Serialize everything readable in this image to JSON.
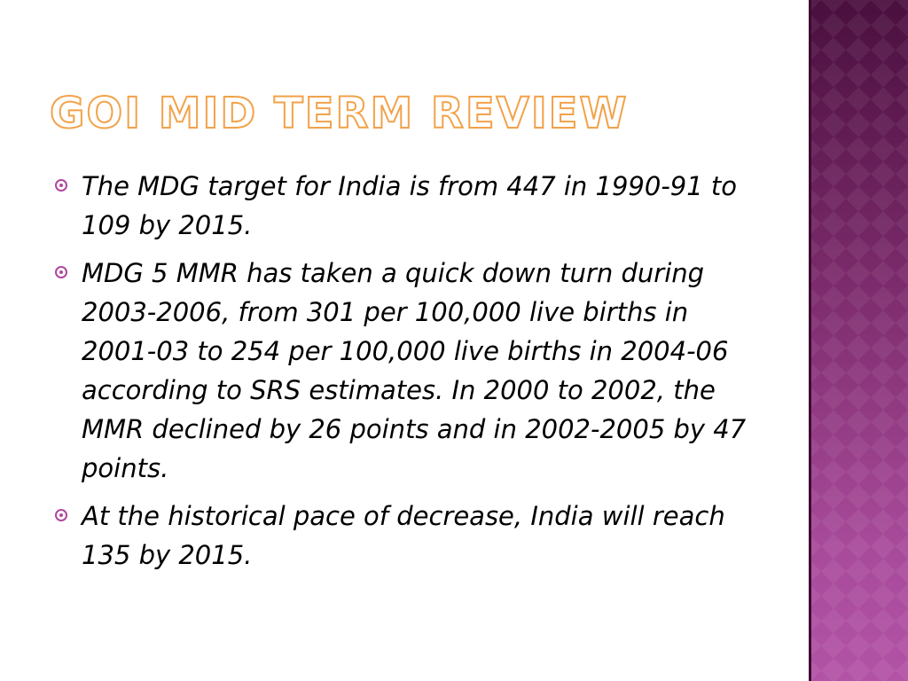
{
  "slide": {
    "title": "GoI Mid Term Review",
    "bullets": [
      "The MDG target for India is from 447 in 1990-91 to 109 by 2015.",
      "MDG 5 MMR has taken a quick down turn during 2003-2006, from 301 per 100,000 live births in 2001-03 to 254 per 100,000 live births in 2004-06 according to SRS estimates. In 2000 to 2002, the MMR declined by 26 points and in 2002-2005 by 47 points.",
      "At the historical pace of decrease, India will reach 135 by 2015."
    ]
  },
  "theme": {
    "title_color": "#f2a24a",
    "bullet_color": "#b0479e",
    "band_color_top": "#4a0f3e",
    "band_color_bottom": "#b253a6"
  },
  "icons": {
    "bullet": "circle-dot-bullet-icon"
  }
}
